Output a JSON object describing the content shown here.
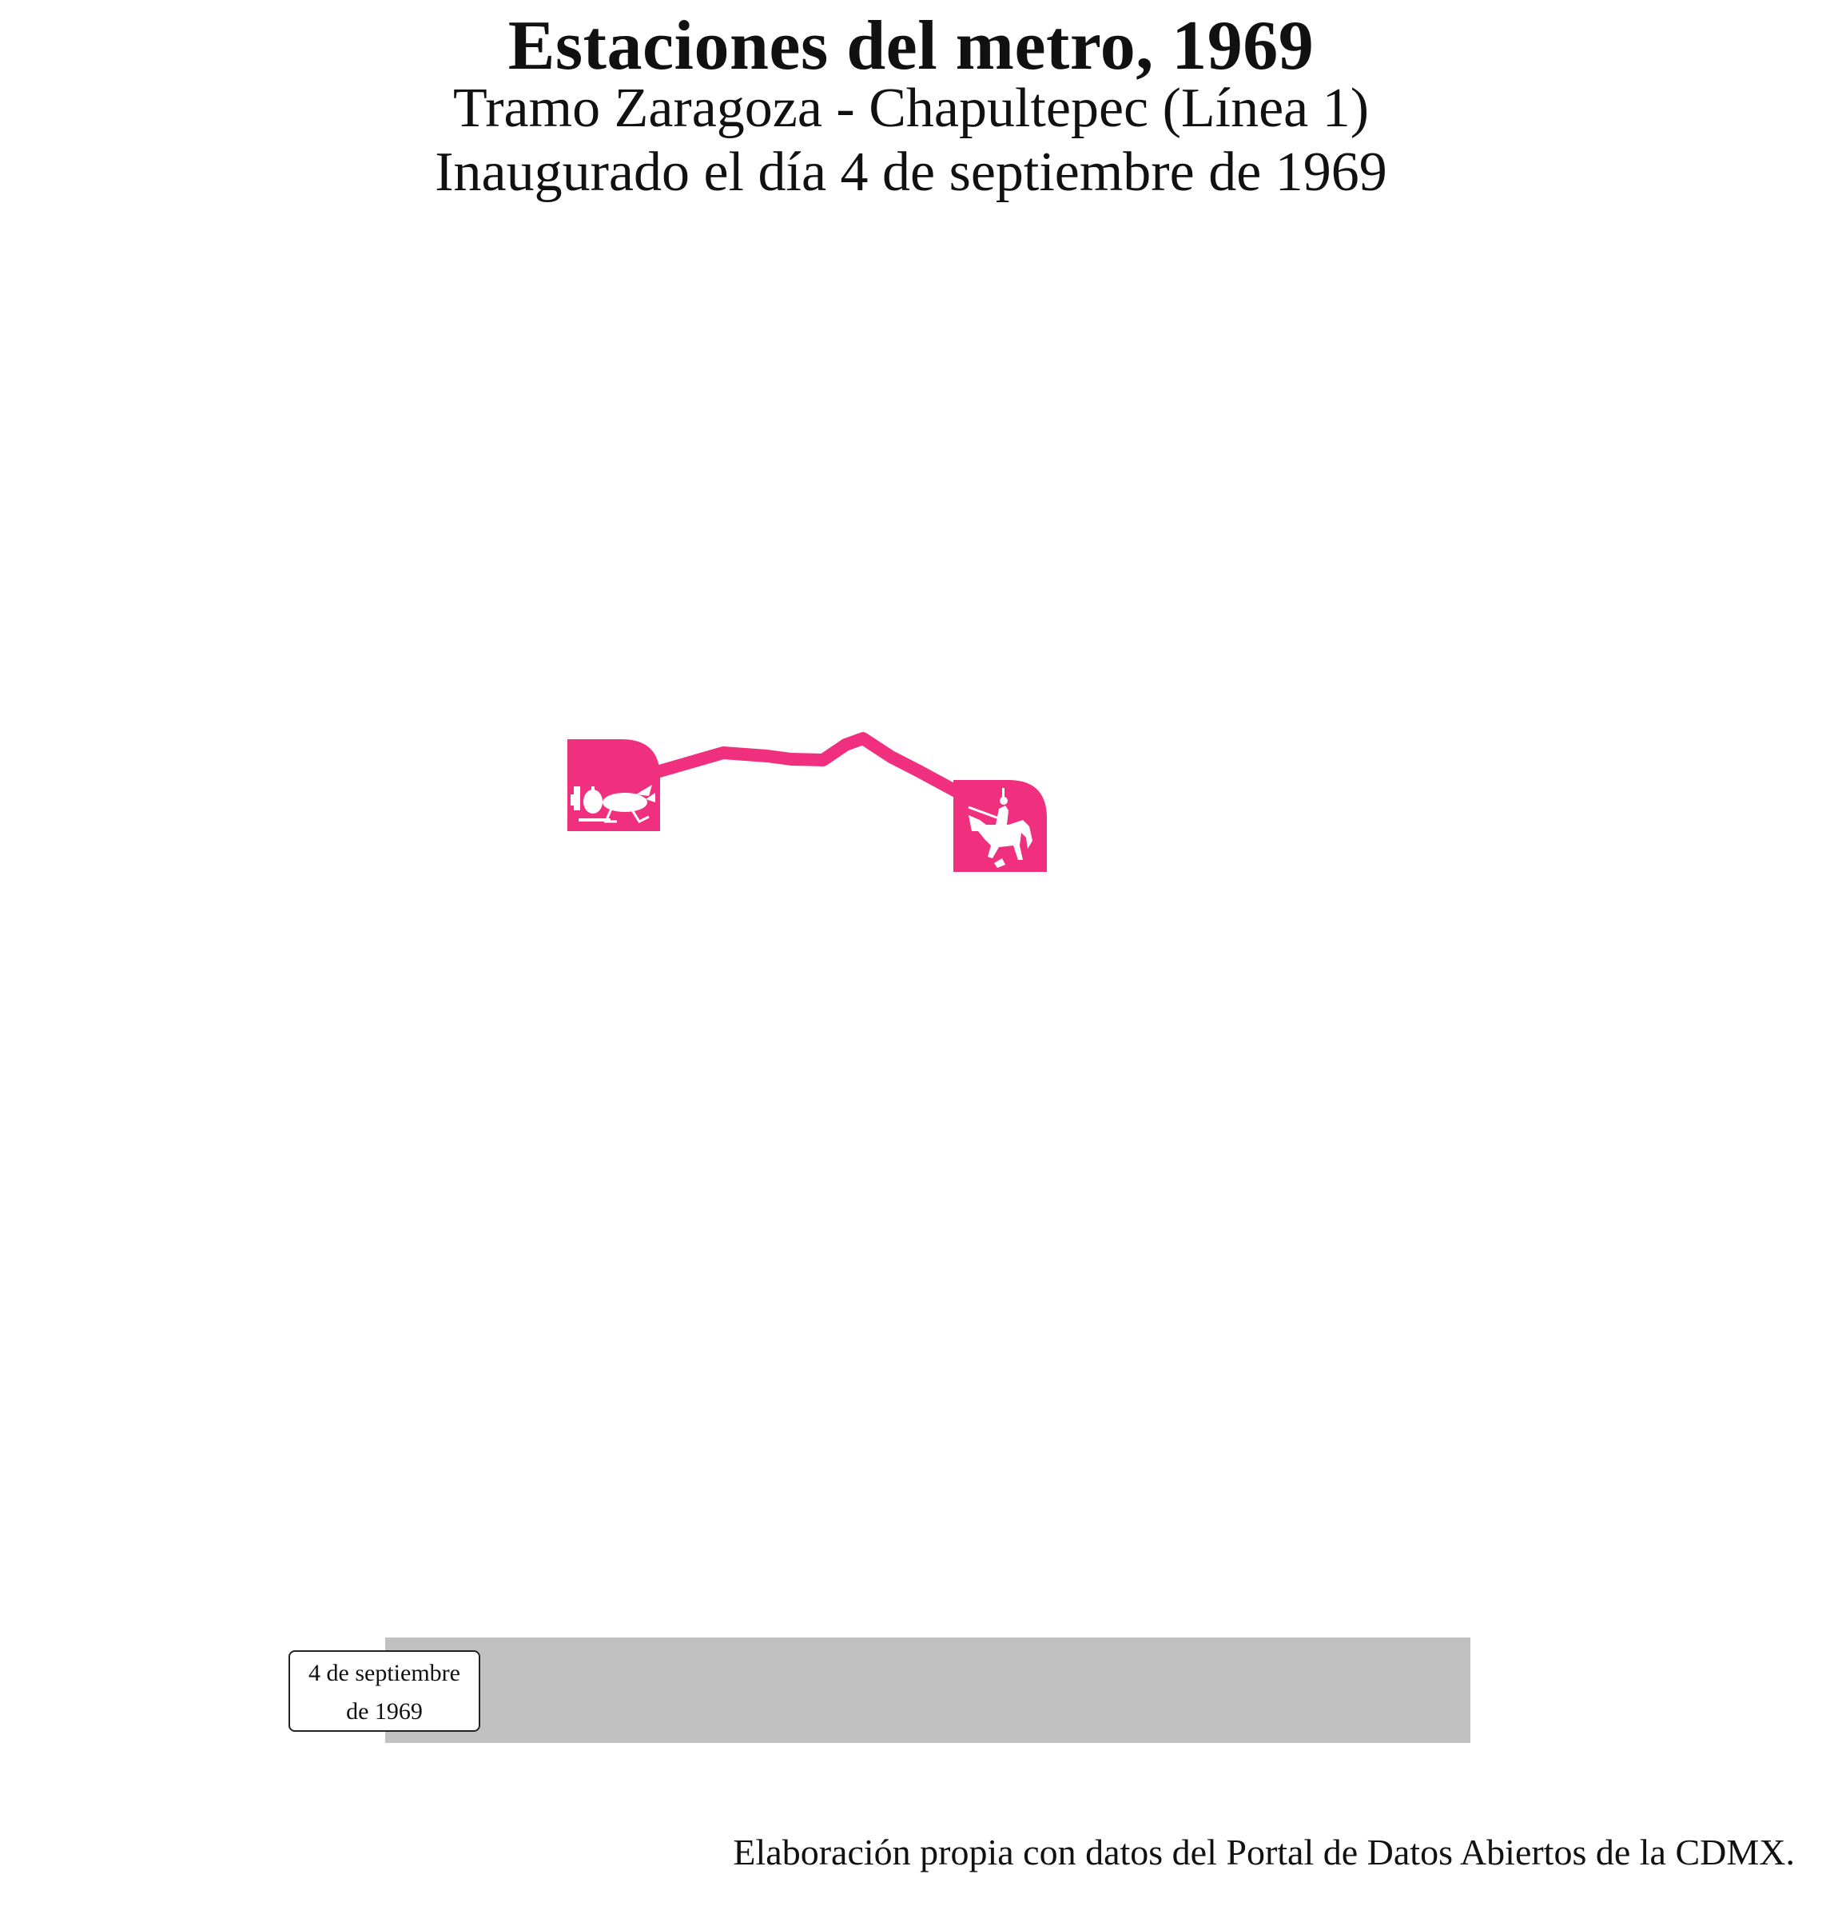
{
  "header": {
    "title": "Estaciones del metro, 1969",
    "subtitle_line1": "Tramo Zaragoza - Chapultepec (Línea 1)",
    "subtitle_line2": "Inaugurado el día 4 de septiembre de 1969"
  },
  "map": {
    "line_name": "Línea 1",
    "line_color": "#f0307f",
    "stations": [
      {
        "name": "Zaragoza",
        "icon": "locust-on-cactus-station-icon"
      },
      {
        "name": "Chapultepec",
        "icon": "horse-rider-station-icon"
      }
    ]
  },
  "timeline": {
    "bar_color": "#c1c1c1",
    "date_line1": "4 de septiembre",
    "date_line2": "de 1969"
  },
  "caption": "Elaboración propia con datos del Portal de Datos Abiertos de la CDMX."
}
